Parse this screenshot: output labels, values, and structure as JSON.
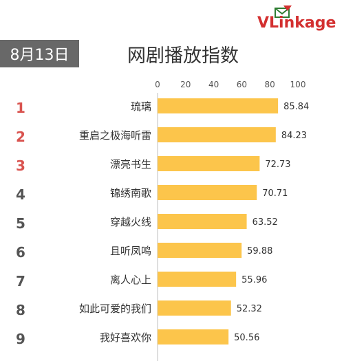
{
  "brand": {
    "v": "V",
    "rest": "Linkage"
  },
  "date_label": "8月13日",
  "colors": {
    "bar": "#fcc54b",
    "rank_top": "#d9534f",
    "rank_other": "#555555",
    "date_bg": "#686868"
  },
  "chart_data": {
    "type": "bar",
    "orientation": "horizontal",
    "title": "网剧播放指数",
    "ranks": [
      "1",
      "2",
      "3",
      "4",
      "5",
      "6",
      "7",
      "8",
      "9"
    ],
    "categories": [
      "琉璃",
      "重启之极海听雷",
      "漂亮书生",
      "锦绣南歌",
      "穿越火线",
      "且听凤鸣",
      "离人心上",
      "如此可爱的我们",
      "我好喜欢你"
    ],
    "values": [
      85.84,
      84.23,
      72.73,
      70.71,
      63.52,
      59.88,
      55.96,
      52.32,
      50.56
    ],
    "value_labels": [
      "85.84",
      "84.23",
      "72.73",
      "70.71",
      "63.52",
      "59.88",
      "55.96",
      "52.32",
      "50.56"
    ],
    "xlim": [
      0,
      100
    ],
    "xticks": [
      "0",
      "20",
      "40",
      "60",
      "80",
      "100"
    ],
    "grid": false
  }
}
